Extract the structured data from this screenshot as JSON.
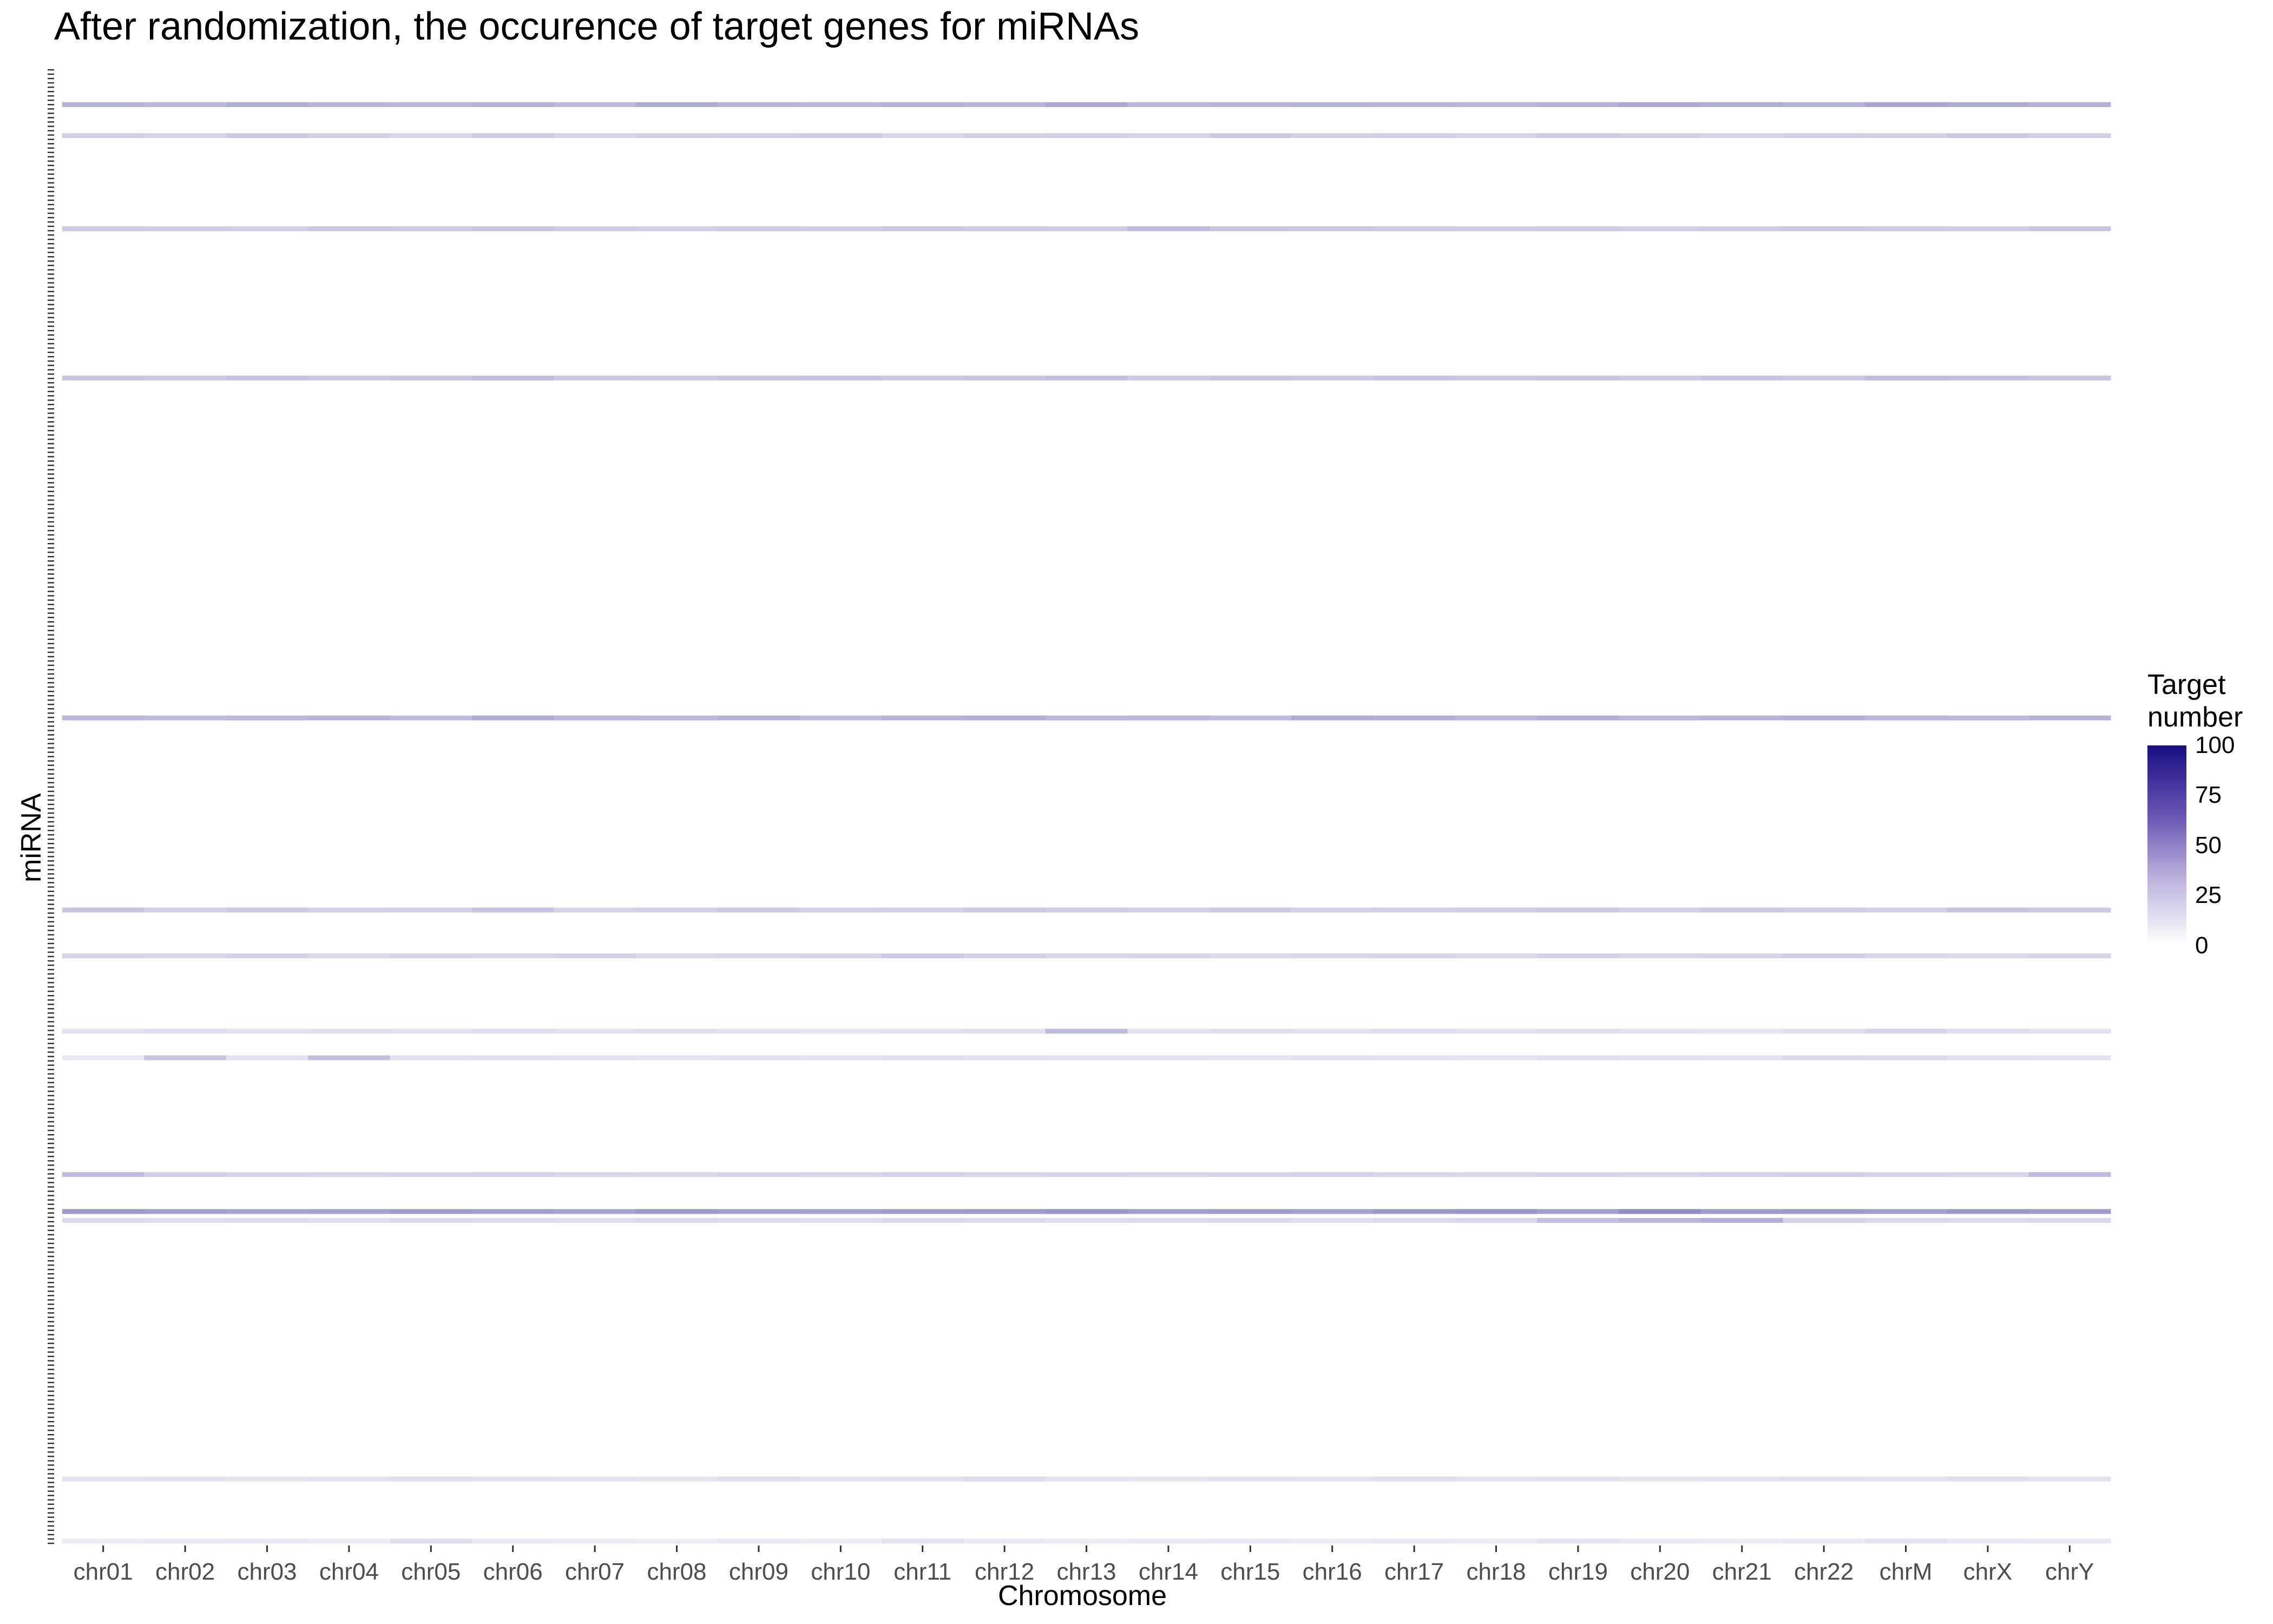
{
  "chart_data": {
    "type": "heatmap",
    "title": "After randomization, the occurence of target genes for miRNAs",
    "xlabel": "Chromosome",
    "ylabel": "miRNA",
    "categories": [
      "chr01",
      "chr02",
      "chr03",
      "chr04",
      "chr05",
      "chr06",
      "chr07",
      "chr08",
      "chr09",
      "chr10",
      "chr11",
      "chr12",
      "chr13",
      "chr14",
      "chr15",
      "chr16",
      "chr17",
      "chr18",
      "chr19",
      "chr20",
      "chr21",
      "chr22",
      "chrM",
      "chrX",
      "chrY"
    ],
    "y_tick_labels_shown": false,
    "color_scale": {
      "title": "Target number",
      "range": [
        0,
        100
      ],
      "ticks": [
        0,
        25,
        50,
        75,
        100
      ],
      "colors": [
        "#ffffff",
        "#180e82"
      ]
    },
    "highlighted_rows": [
      {
        "position": 0.025,
        "values": [
          32,
          30,
          34,
          31,
          30,
          33,
          29,
          35,
          31,
          30,
          33,
          31,
          36,
          30,
          31,
          32,
          31,
          30,
          33,
          36,
          34,
          32,
          37,
          35,
          33
        ]
      },
      {
        "position": 0.046,
        "values": [
          20,
          18,
          22,
          19,
          17,
          21,
          18,
          19,
          20,
          21,
          17,
          19,
          20,
          18,
          22,
          19,
          20,
          18,
          21,
          19,
          18,
          20,
          19,
          22,
          20
        ]
      },
      {
        "position": 0.109,
        "values": [
          22,
          21,
          20,
          23,
          22,
          24,
          21,
          20,
          22,
          21,
          23,
          22,
          21,
          28,
          24,
          23,
          22,
          21,
          22,
          20,
          21,
          23,
          22,
          21,
          24
        ]
      },
      {
        "position": 0.21,
        "values": [
          24,
          22,
          25,
          23,
          24,
          27,
          23,
          22,
          24,
          25,
          23,
          24,
          26,
          22,
          24,
          23,
          25,
          23,
          24,
          22,
          25,
          23,
          27,
          26,
          24
        ]
      },
      {
        "position": 0.44,
        "values": [
          30,
          28,
          29,
          31,
          28,
          34,
          30,
          29,
          32,
          28,
          31,
          33,
          29,
          30,
          28,
          34,
          33,
          30,
          33,
          29,
          31,
          33,
          30,
          29,
          32
        ]
      },
      {
        "position": 0.57,
        "values": [
          24,
          20,
          22,
          19,
          20,
          25,
          18,
          20,
          22,
          19,
          20,
          23,
          21,
          20,
          22,
          19,
          20,
          21,
          22,
          20,
          23,
          21,
          20,
          24,
          22
        ]
      },
      {
        "position": 0.601,
        "values": [
          18,
          17,
          19,
          16,
          18,
          17,
          19,
          16,
          17,
          18,
          22,
          19,
          17,
          18,
          16,
          17,
          18,
          16,
          19,
          17,
          18,
          20,
          17,
          16,
          18
        ]
      },
      {
        "position": 0.652,
        "values": [
          12,
          14,
          12,
          13,
          12,
          14,
          12,
          13,
          12,
          11,
          12,
          13,
          28,
          12,
          13,
          12,
          14,
          12,
          13,
          12,
          11,
          13,
          18,
          14,
          12
        ]
      },
      {
        "position": 0.67,
        "values": [
          10,
          24,
          12,
          26,
          13,
          14,
          12,
          11,
          13,
          12,
          14,
          13,
          12,
          12,
          11,
          13,
          12,
          11,
          14,
          13,
          12,
          16,
          15,
          13,
          12
        ]
      },
      {
        "position": 0.749,
        "values": [
          28,
          20,
          18,
          17,
          18,
          19,
          17,
          16,
          18,
          17,
          19,
          17,
          18,
          17,
          18,
          19,
          17,
          16,
          18,
          17,
          19,
          20,
          18,
          17,
          28
        ]
      },
      {
        "position": 0.774,
        "values": [
          42,
          40,
          38,
          39,
          41,
          40,
          38,
          42,
          40,
          39,
          41,
          42,
          44,
          40,
          41,
          39,
          43,
          44,
          40,
          48,
          41,
          42,
          40,
          43,
          41
        ]
      },
      {
        "position": 0.78,
        "values": [
          16,
          14,
          15,
          14,
          16,
          15,
          14,
          16,
          15,
          14,
          16,
          15,
          14,
          15,
          16,
          14,
          15,
          17,
          26,
          30,
          33,
          18,
          16,
          15,
          16
        ]
      },
      {
        "position": 0.955,
        "values": [
          12,
          13,
          11,
          12,
          14,
          13,
          12,
          11,
          14,
          12,
          13,
          15,
          12,
          11,
          13,
          12,
          14,
          12,
          13,
          11,
          12,
          13,
          12,
          14,
          12
        ]
      },
      {
        "position": 0.997,
        "values": [
          8,
          9,
          10,
          8,
          14,
          9,
          8,
          7,
          9,
          8,
          12,
          9,
          8,
          9,
          10,
          8,
          9,
          8,
          12,
          9,
          8,
          9,
          12,
          10,
          9
        ]
      }
    ]
  }
}
